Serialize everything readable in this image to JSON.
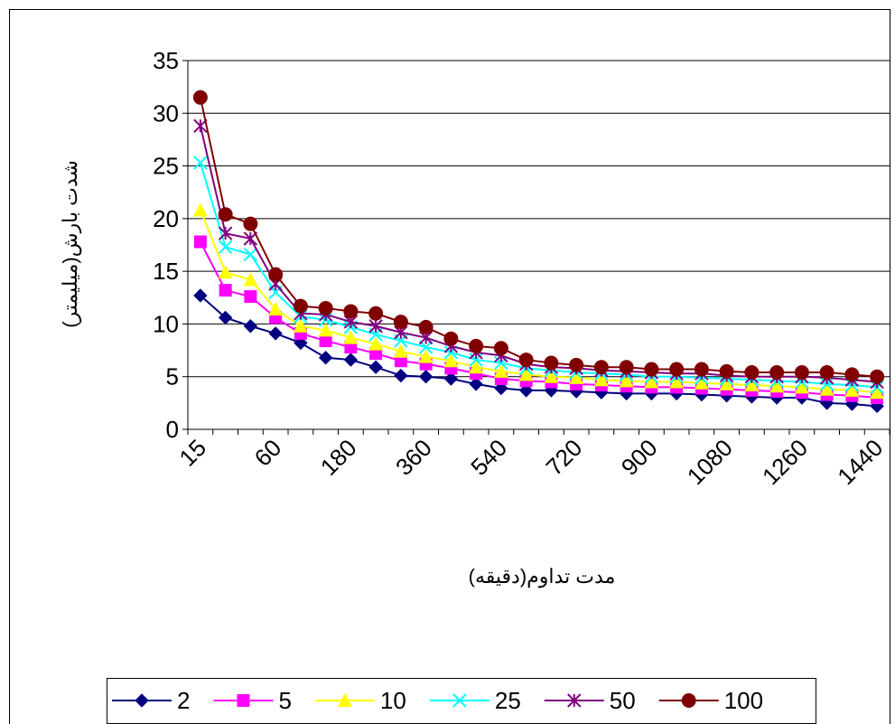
{
  "chart_data": {
    "type": "line",
    "x_label": "مدت تداوم(دقیقه)",
    "y_label": "شدت بارش(میلیمتر)",
    "categories": [
      "15",
      null,
      null,
      "60",
      null,
      null,
      "180",
      null,
      null,
      "360",
      null,
      null,
      "540",
      null,
      null,
      "720",
      null,
      null,
      "900",
      null,
      null,
      "1080",
      null,
      null,
      "1260",
      null,
      null,
      "1440"
    ],
    "ylim": [
      0,
      35
    ],
    "yticks": [
      0,
      5,
      10,
      15,
      20,
      25,
      30,
      35
    ],
    "grid": true,
    "legend": "bottom",
    "series": [
      {
        "name": "2",
        "color": "#000080",
        "marker": "diamond",
        "values": [
          12.7,
          10.6,
          9.8,
          9.1,
          8.2,
          6.8,
          6.6,
          5.9,
          5.1,
          5.0,
          4.8,
          4.3,
          3.9,
          3.7,
          3.7,
          3.6,
          3.5,
          3.4,
          3.4,
          3.4,
          3.3,
          3.2,
          3.1,
          3.0,
          3.0,
          2.5,
          2.4,
          2.2
        ]
      },
      {
        "name": "5",
        "color": "#ff00ff",
        "marker": "square",
        "values": [
          17.8,
          13.2,
          12.6,
          10.6,
          9.1,
          8.4,
          7.8,
          7.2,
          6.5,
          6.2,
          5.8,
          5.3,
          4.8,
          4.6,
          4.5,
          4.3,
          4.2,
          4.1,
          4.0,
          4.0,
          3.9,
          3.8,
          3.7,
          3.6,
          3.5,
          3.3,
          3.2,
          3.0
        ]
      },
      {
        "name": "10",
        "color": "#ffff00",
        "marker": "triangle",
        "values": [
          20.8,
          14.9,
          14.2,
          11.4,
          9.8,
          9.4,
          8.7,
          8.1,
          7.4,
          6.9,
          6.5,
          5.9,
          5.5,
          5.2,
          5.0,
          4.9,
          4.7,
          4.6,
          4.5,
          4.5,
          4.4,
          4.3,
          4.2,
          4.1,
          4.0,
          3.8,
          3.7,
          3.5
        ]
      },
      {
        "name": "25",
        "color": "#00ffff",
        "marker": "x",
        "values": [
          25.3,
          17.3,
          16.6,
          13.0,
          10.7,
          10.4,
          9.7,
          9.0,
          8.4,
          7.8,
          7.3,
          6.6,
          6.3,
          5.8,
          5.6,
          5.4,
          5.3,
          5.2,
          5.0,
          5.0,
          4.9,
          4.8,
          4.7,
          4.6,
          4.5,
          4.3,
          4.2,
          4.0
        ]
      },
      {
        "name": "50",
        "color": "#800080",
        "marker": "star",
        "values": [
          28.8,
          18.6,
          18.1,
          13.8,
          11.0,
          10.9,
          10.2,
          9.8,
          9.2,
          8.7,
          7.9,
          7.3,
          7.0,
          6.2,
          5.9,
          5.8,
          5.6,
          5.5,
          5.4,
          5.3,
          5.3,
          5.1,
          5.0,
          5.0,
          5.0,
          4.9,
          4.7,
          4.5
        ]
      },
      {
        "name": "100",
        "color": "#800000",
        "marker": "circle",
        "values": [
          31.5,
          20.4,
          19.5,
          14.7,
          11.7,
          11.5,
          11.2,
          11.0,
          10.2,
          9.7,
          8.6,
          7.9,
          7.7,
          6.6,
          6.3,
          6.1,
          5.9,
          5.9,
          5.7,
          5.7,
          5.7,
          5.5,
          5.4,
          5.4,
          5.4,
          5.4,
          5.2,
          5.0
        ]
      }
    ]
  }
}
